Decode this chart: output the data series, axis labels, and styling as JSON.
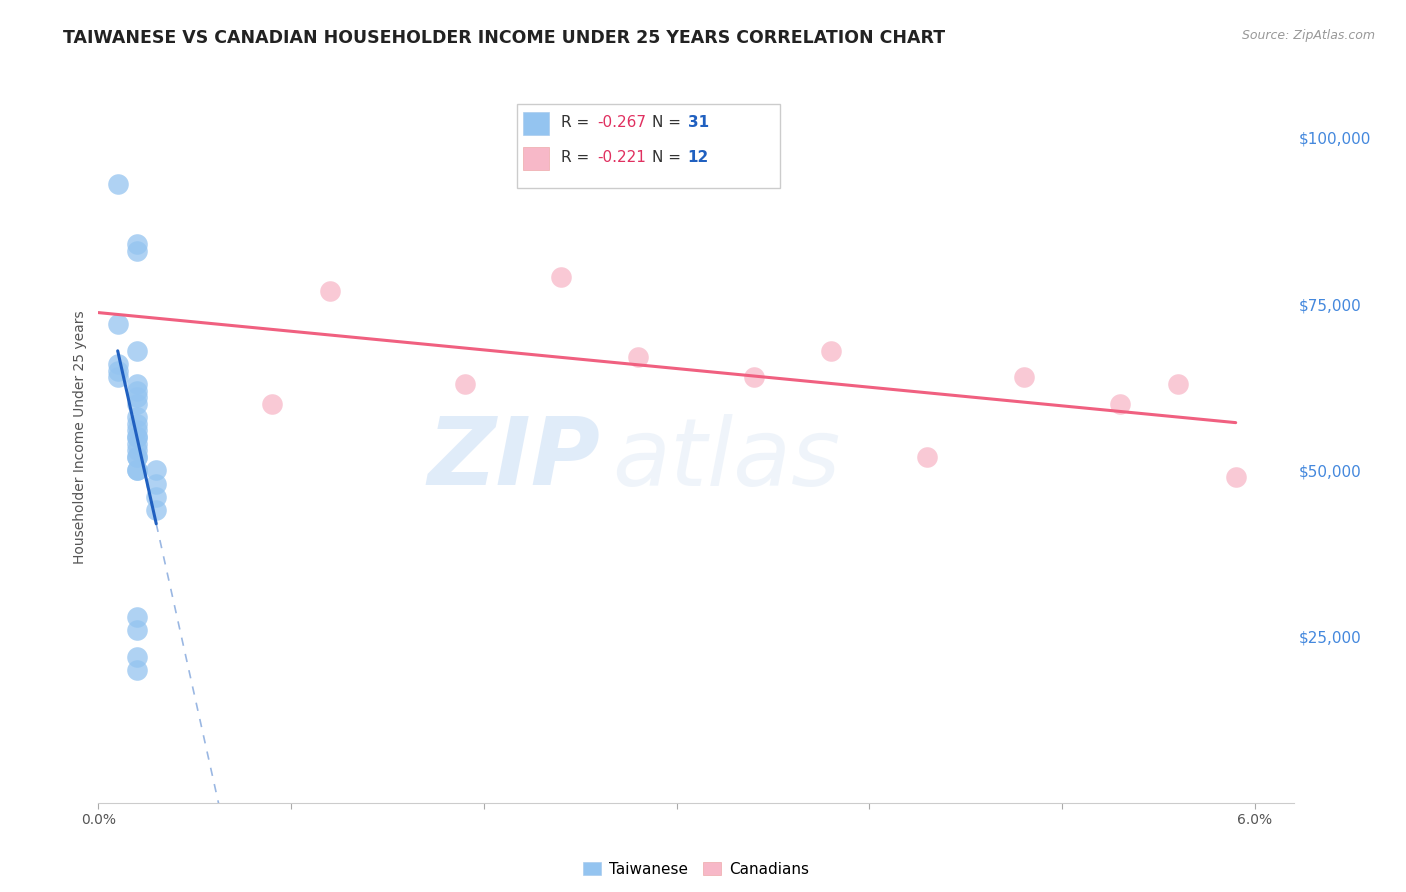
{
  "title": "TAIWANESE VS CANADIAN HOUSEHOLDER INCOME UNDER 25 YEARS CORRELATION CHART",
  "source": "Source: ZipAtlas.com",
  "ylabel": "Householder Income Under 25 years",
  "right_ytick_labels": [
    "$100,000",
    "$75,000",
    "$50,000",
    "$25,000"
  ],
  "right_ytick_values": [
    100000,
    75000,
    50000,
    25000
  ],
  "ylim": [
    0,
    110000
  ],
  "xlim": [
    0.0,
    0.062
  ],
  "taiwanese_color": "#94c4f0",
  "canadians_color": "#f7b8c8",
  "trendline_taiwanese_color": "#2060c0",
  "trendline_canadians_color": "#f06080",
  "background_color": "#ffffff",
  "watermark_zip": "ZIP",
  "watermark_atlas": "atlas",
  "grid_color": "#cccccc",
  "title_fontsize": 12.5,
  "axis_label_fontsize": 10,
  "tick_fontsize": 10,
  "legend_fontsize": 11,
  "taiwanese_x": [
    0.001,
    0.002,
    0.002,
    0.001,
    0.002,
    0.001,
    0.001,
    0.001,
    0.002,
    0.002,
    0.002,
    0.002,
    0.002,
    0.002,
    0.002,
    0.002,
    0.002,
    0.002,
    0.002,
    0.002,
    0.002,
    0.002,
    0.002,
    0.003,
    0.003,
    0.003,
    0.003,
    0.002,
    0.002,
    0.002,
    0.002
  ],
  "taiwanese_y": [
    93000,
    83000,
    84000,
    72000,
    68000,
    66000,
    65000,
    64000,
    63000,
    62000,
    61000,
    60000,
    58000,
    57000,
    56000,
    55000,
    55000,
    54000,
    53000,
    52000,
    52000,
    50000,
    50000,
    50000,
    48000,
    46000,
    44000,
    28000,
    26000,
    22000,
    20000
  ],
  "canadians_x": [
    0.009,
    0.012,
    0.019,
    0.024,
    0.028,
    0.034,
    0.038,
    0.043,
    0.048,
    0.053,
    0.056,
    0.059
  ],
  "canadians_y": [
    60000,
    77000,
    63000,
    79000,
    67000,
    64000,
    68000,
    52000,
    64000,
    60000,
    63000,
    49000
  ]
}
